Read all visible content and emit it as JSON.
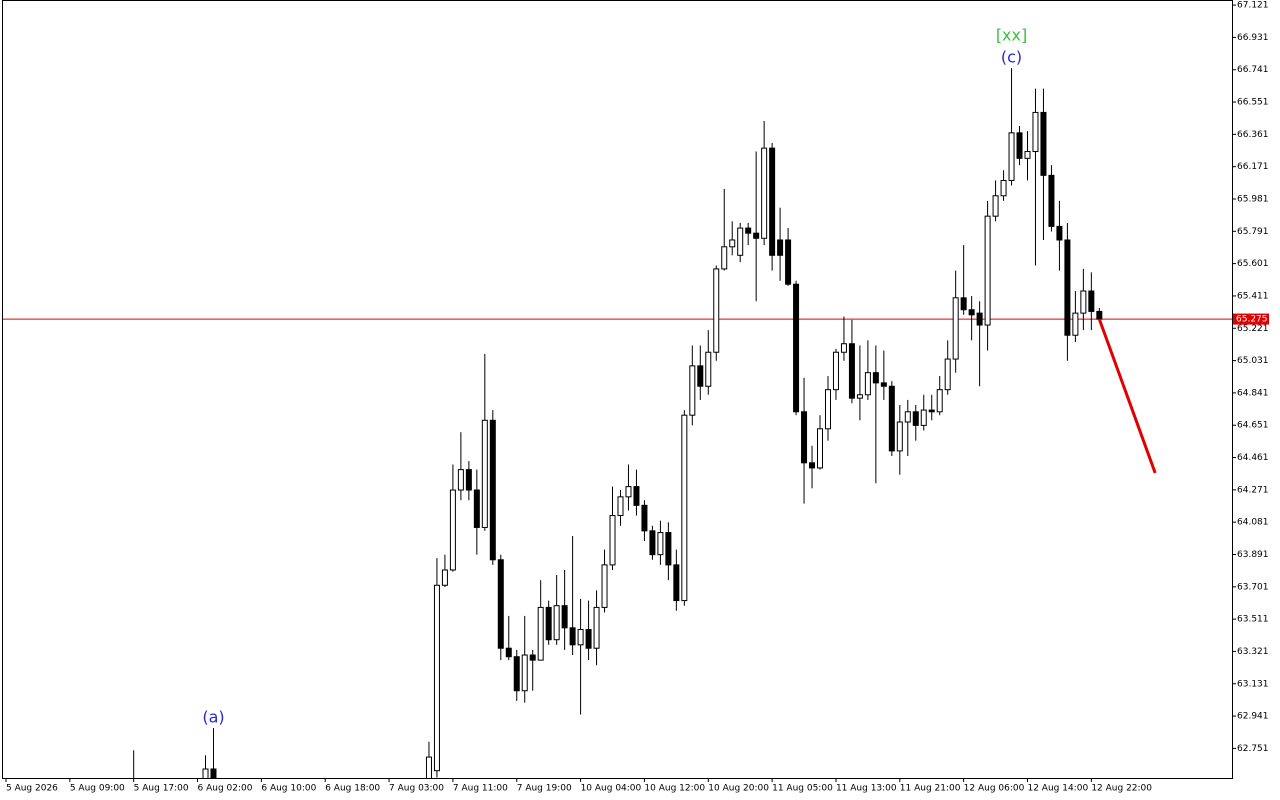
{
  "chart_data": {
    "type": "candlestick",
    "x": [
      16,
      25,
      26,
      53,
      54,
      55,
      56,
      57,
      58,
      59,
      60,
      61,
      62,
      63,
      64,
      65,
      66,
      67,
      68,
      69,
      70,
      71,
      72,
      73,
      74,
      75,
      76,
      77,
      78,
      79,
      80,
      81,
      82,
      83,
      84,
      85,
      86,
      87,
      88,
      89,
      90,
      91,
      92,
      93,
      94,
      95,
      96,
      97,
      98,
      99,
      100,
      101,
      102,
      103,
      104,
      105,
      106,
      107,
      108,
      109,
      110,
      111,
      112,
      113,
      114,
      115,
      116,
      117,
      118,
      119,
      120,
      121,
      122,
      123,
      124,
      125,
      126,
      127,
      128,
      129,
      130,
      131,
      132,
      133,
      134,
      135,
      136,
      137
    ],
    "open": [
      62.55,
      62.5,
      62.63,
      62.5,
      62.62,
      63.71,
      63.8,
      64.27,
      64.39,
      64.27,
      64.05,
      64.68,
      63.86,
      63.34,
      63.29,
      63.09,
      63.3,
      63.27,
      63.58,
      63.39,
      63.59,
      63.46,
      63.36,
      63.45,
      63.34,
      63.58,
      63.83,
      64.12,
      64.23,
      64.29,
      64.18,
      64.03,
      63.89,
      64.02,
      63.83,
      63.62,
      64.71,
      65.0,
      64.88,
      65.08,
      65.57,
      65.7,
      65.65,
      65.81,
      65.78,
      65.75,
      66.28,
      65.74,
      65.74,
      65.48,
      64.73,
      64.43,
      64.4,
      64.63,
      64.86,
      65.08,
      65.13,
      64.81,
      64.83,
      64.96,
      64.9,
      64.88,
      64.5,
      64.67,
      64.73,
      64.65,
      64.74,
      64.73,
      64.86,
      65.04,
      65.4,
      65.33,
      65.31,
      65.24,
      65.88,
      66.0,
      66.09,
      66.37,
      66.22,
      66.26,
      66.49,
      66.12,
      65.82,
      65.74,
      65.18,
      65.31,
      65.44,
      65.32
    ],
    "high": [
      62.74,
      62.71,
      62.87,
      62.79,
      63.87,
      63.89,
      64.42,
      64.61,
      64.44,
      64.39,
      65.07,
      64.74,
      63.89,
      63.53,
      63.33,
      63.53,
      63.33,
      63.74,
      63.62,
      63.77,
      63.8,
      64.0,
      63.63,
      63.62,
      63.68,
      63.92,
      64.29,
      64.27,
      64.42,
      64.39,
      64.21,
      64.06,
      64.09,
      64.08,
      63.92,
      64.74,
      65.12,
      65.12,
      65.21,
      65.59,
      66.04,
      65.85,
      65.84,
      65.84,
      66.26,
      66.44,
      66.31,
      65.93,
      65.81,
      65.5,
      64.93,
      64.53,
      64.71,
      64.94,
      65.1,
      65.29,
      65.27,
      65.12,
      65.15,
      65.12,
      65.09,
      64.91,
      64.77,
      64.8,
      64.77,
      64.83,
      64.83,
      64.94,
      65.15,
      65.56,
      65.71,
      65.41,
      65.38,
      65.97,
      66.09,
      66.15,
      66.75,
      66.41,
      66.38,
      66.63,
      66.63,
      66.18,
      65.97,
      65.84,
      65.44,
      65.57,
      65.55,
      65.34
    ],
    "low": [
      62.45,
      62.45,
      62.45,
      62.45,
      62.58,
      63.7,
      63.79,
      64.21,
      64.21,
      63.89,
      64.03,
      63.83,
      63.27,
      63.27,
      63.03,
      63.02,
      63.09,
      63.27,
      63.36,
      63.36,
      63.33,
      63.3,
      62.95,
      63.27,
      63.24,
      63.55,
      63.8,
      64.06,
      64.15,
      64.12,
      63.97,
      63.86,
      63.83,
      63.74,
      63.56,
      63.59,
      64.65,
      64.8,
      64.83,
      65.03,
      65.56,
      65.65,
      65.61,
      65.71,
      65.38,
      65.71,
      65.56,
      65.5,
      65.47,
      64.71,
      64.19,
      64.28,
      64.39,
      64.56,
      64.8,
      65.03,
      64.78,
      64.68,
      64.8,
      64.31,
      64.8,
      64.47,
      64.36,
      64.47,
      64.56,
      64.62,
      64.68,
      64.71,
      64.83,
      64.96,
      65.3,
      65.15,
      64.88,
      65.09,
      65.85,
      65.97,
      66.06,
      66.18,
      66.09,
      65.59,
      65.74,
      65.79,
      65.56,
      65.03,
      65.14,
      65.21,
      65.21,
      65.29
    ],
    "close": [
      62.5,
      62.63,
      62.5,
      62.7,
      63.71,
      63.8,
      64.27,
      64.39,
      64.27,
      64.05,
      64.68,
      63.86,
      63.34,
      63.29,
      63.09,
      63.3,
      63.27,
      63.58,
      63.39,
      63.59,
      63.46,
      63.36,
      63.45,
      63.34,
      63.58,
      63.83,
      64.12,
      64.23,
      64.29,
      64.18,
      64.03,
      63.89,
      64.02,
      63.83,
      63.62,
      64.71,
      65.0,
      64.88,
      65.08,
      65.57,
      65.7,
      65.74,
      65.81,
      65.78,
      65.75,
      66.28,
      65.65,
      65.65,
      65.48,
      64.73,
      64.43,
      64.4,
      64.63,
      64.86,
      65.08,
      65.13,
      64.81,
      64.83,
      64.96,
      64.9,
      64.88,
      64.5,
      64.67,
      64.73,
      64.65,
      64.74,
      64.73,
      64.86,
      65.04,
      65.4,
      65.33,
      65.3,
      65.24,
      65.88,
      66.0,
      66.09,
      66.37,
      66.22,
      66.26,
      66.49,
      66.12,
      65.82,
      65.74,
      65.18,
      65.31,
      65.44,
      65.32,
      65.275
    ],
    "up_color": "#ffffff",
    "down_color": "#000000",
    "edge_color": "#000000",
    "xlim": [
      -0.375,
      153.625
    ],
    "ylim": [
      62.577,
      67.145
    ],
    "yticks": [
      67.121,
      66.931,
      66.741,
      66.551,
      66.361,
      66.171,
      65.981,
      65.791,
      65.601,
      65.411,
      65.221,
      65.031,
      64.841,
      64.651,
      64.461,
      64.271,
      64.081,
      63.891,
      63.701,
      63.511,
      63.321,
      63.131,
      62.941,
      62.751
    ],
    "xticks": [
      {
        "value": 0,
        "label": "5 Aug 2026"
      },
      {
        "value": 8,
        "label": "5 Aug 09:00"
      },
      {
        "value": 16,
        "label": "5 Aug 17:00"
      },
      {
        "value": 24,
        "label": "6 Aug 02:00"
      },
      {
        "value": 32,
        "label": "6 Aug 10:00"
      },
      {
        "value": 40,
        "label": "6 Aug 18:00"
      },
      {
        "value": 48,
        "label": "7 Aug 03:00"
      },
      {
        "value": 56,
        "label": "7 Aug 11:00"
      },
      {
        "value": 64,
        "label": "7 Aug 19:00"
      },
      {
        "value": 72,
        "label": "10 Aug 04:00"
      },
      {
        "value": 80,
        "label": "10 Aug 12:00"
      },
      {
        "value": 88,
        "label": "10 Aug 20:00"
      },
      {
        "value": 96,
        "label": "11 Aug 05:00"
      },
      {
        "value": 104,
        "label": "11 Aug 13:00"
      },
      {
        "value": 112,
        "label": "11 Aug 21:00"
      },
      {
        "value": 120,
        "label": "12 Aug 06:00"
      },
      {
        "value": 128,
        "label": "12 Aug 14:00"
      },
      {
        "value": 136,
        "label": "12 Aug 22:00"
      }
    ],
    "price_line": {
      "value": 65.275,
      "color": "#e00000"
    },
    "forecast": {
      "x": [
        137,
        144
      ],
      "values": [
        65.275,
        64.37
      ],
      "color": "#e00000"
    },
    "annotations": [
      {
        "text": "(a)",
        "x": 26,
        "color": "#2828d8"
      },
      {
        "text": "(c)",
        "x": 126,
        "color": "#2828d8"
      },
      {
        "text": "[xx]",
        "x": 126,
        "color": "#3cbe3c"
      }
    ]
  }
}
